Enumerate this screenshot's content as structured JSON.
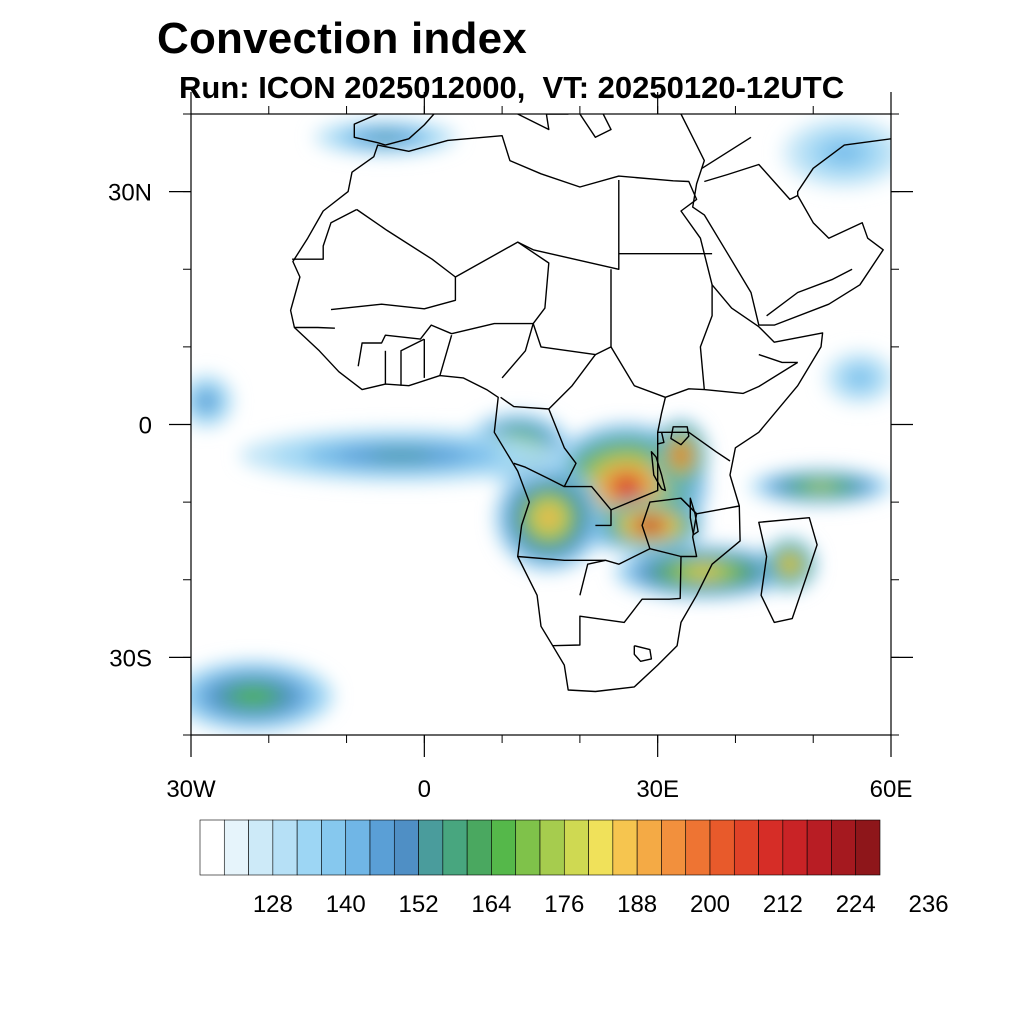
{
  "title": "Convection index",
  "subtitle": "Run: ICON 2025012000,  VT: 20250120-12UTC",
  "map": {
    "lon_range": [
      -30,
      60
    ],
    "lat_range": [
      -40,
      40
    ],
    "lon_ticks": [
      {
        "value": -30,
        "label": "30W"
      },
      {
        "value": 0,
        "label": "0"
      },
      {
        "value": 30,
        "label": "30E"
      },
      {
        "value": 60,
        "label": "60E"
      }
    ],
    "lat_ticks": [
      {
        "value": 30,
        "label": "30N"
      },
      {
        "value": 0,
        "label": "0"
      },
      {
        "value": -30,
        "label": "30S"
      }
    ],
    "minor_lon_step": 10,
    "minor_lat_step": 10,
    "coastline_color": "#000000"
  },
  "colorbar": {
    "colors": [
      "#ffffff",
      "#e6f4fb",
      "#cdeaf8",
      "#b6e0f6",
      "#9dd6f4",
      "#86c8ee",
      "#70b6e6",
      "#5a9fd6",
      "#4f8fc5",
      "#4a9c9c",
      "#48a67f",
      "#4aa860",
      "#55b84a",
      "#7fc24a",
      "#a6cc4e",
      "#cfd952",
      "#f0e15a",
      "#f6c54f",
      "#f4aa45",
      "#f2903d",
      "#ee7433",
      "#e85a2b",
      "#e04228",
      "#d62d27",
      "#c92326",
      "#b81d24",
      "#a5191f",
      "#8e161a"
    ],
    "labels": [
      {
        "value": 128,
        "label": "128"
      },
      {
        "value": 140,
        "label": "140"
      },
      {
        "value": 152,
        "label": "152"
      },
      {
        "value": 164,
        "label": "164"
      },
      {
        "value": 176,
        "label": "176"
      },
      {
        "value": 188,
        "label": "188"
      },
      {
        "value": 200,
        "label": "200"
      },
      {
        "value": 212,
        "label": "212"
      },
      {
        "value": 224,
        "label": "224"
      },
      {
        "value": 236,
        "label": "236"
      }
    ],
    "level_start": 120,
    "level_step": 4
  },
  "fields": [
    {
      "name": "central-africa-core",
      "lon": 26,
      "lat": -8,
      "rx": 9,
      "ry": 7,
      "value": 208
    },
    {
      "name": "zambia-malawi-hot",
      "lon": 29,
      "lat": -13,
      "rx": 6,
      "ry": 3,
      "value": 222
    },
    {
      "name": "east-lake-region",
      "lon": 33,
      "lat": -4,
      "rx": 3,
      "ry": 4,
      "value": 210
    },
    {
      "name": "angola-band",
      "lon": 16,
      "lat": -12,
      "rx": 6,
      "ry": 6,
      "value": 190
    },
    {
      "name": "congo-west",
      "lon": 12,
      "lat": -3,
      "rx": 6,
      "ry": 4,
      "value": 178
    },
    {
      "name": "mozambique-band",
      "lon": 36,
      "lat": -19,
      "rx": 10,
      "ry": 3,
      "value": 186
    },
    {
      "name": "madagascar-east",
      "lon": 47,
      "lat": -18,
      "rx": 3,
      "ry": 3,
      "value": 196
    },
    {
      "name": "indian-ocean-streak",
      "lon": 51,
      "lat": -8,
      "rx": 8,
      "ry": 2,
      "value": 176
    },
    {
      "name": "gulf-of-guinea-plume",
      "lon": -3,
      "lat": -4,
      "rx": 18,
      "ry": 3,
      "value": 152
    },
    {
      "name": "south-atlantic-storm",
      "lon": -22,
      "lat": -35,
      "rx": 9,
      "ry": 4,
      "value": 164
    },
    {
      "name": "north-arabia-cloud",
      "lon": 54,
      "lat": 35,
      "rx": 7,
      "ry": 4,
      "value": 140
    },
    {
      "name": "mediterranean-band",
      "lon": -5,
      "lat": 37,
      "rx": 8,
      "ry": 2,
      "value": 152
    },
    {
      "name": "indian-ocean-north",
      "lon": 56,
      "lat": 6,
      "rx": 4,
      "ry": 3,
      "value": 140
    },
    {
      "name": "atlantic-west-blob",
      "lon": -28,
      "lat": 3,
      "rx": 3,
      "ry": 3,
      "value": 150
    }
  ]
}
